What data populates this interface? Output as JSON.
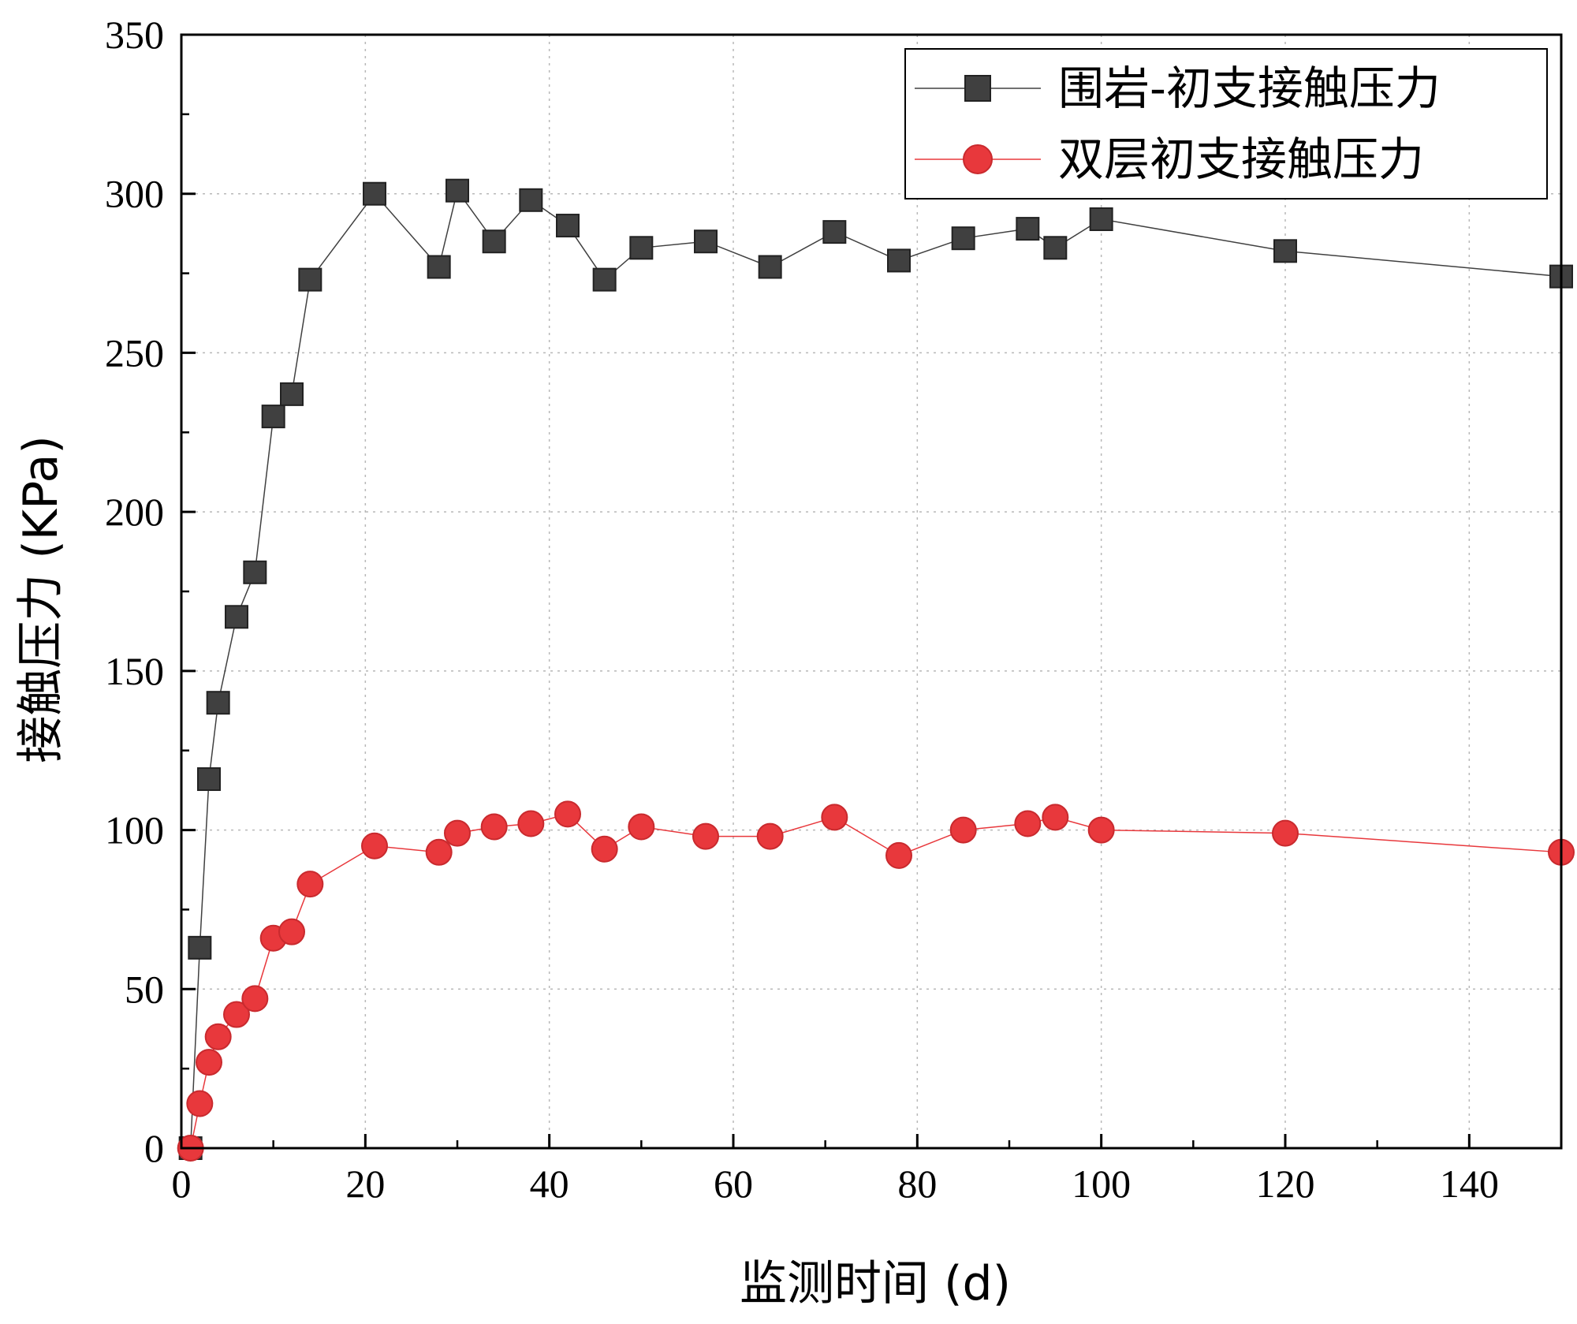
{
  "chart_data": {
    "type": "line",
    "xlabel": "监测时间 (d)",
    "ylabel": "接触压力 (KPa)",
    "xlim": [
      0,
      150
    ],
    "ylim": [
      0,
      350
    ],
    "xticks": [
      0,
      20,
      40,
      60,
      80,
      100,
      120,
      140
    ],
    "yticks": [
      0,
      50,
      100,
      150,
      200,
      250,
      300,
      350
    ],
    "grid": true,
    "legend_position": "top-right",
    "series": [
      {
        "name": "围岩-初支接触压力",
        "color": "#404040",
        "marker": "square",
        "x": [
          1,
          2,
          3,
          4,
          6,
          8,
          10,
          12,
          14,
          21,
          28,
          30,
          34,
          38,
          42,
          46,
          50,
          57,
          64,
          71,
          78,
          85,
          92,
          95,
          100,
          120,
          150
        ],
        "values": [
          0,
          63,
          116,
          140,
          167,
          181,
          230,
          237,
          273,
          300,
          277,
          301,
          285,
          298,
          290,
          273,
          283,
          285,
          277,
          288,
          279,
          286,
          289,
          283,
          292,
          282,
          274
        ]
      },
      {
        "name": "双层初支接触压力",
        "color": "#e8383c",
        "marker": "circle",
        "x": [
          1,
          2,
          3,
          4,
          6,
          8,
          10,
          12,
          14,
          21,
          28,
          30,
          34,
          38,
          42,
          46,
          50,
          57,
          64,
          71,
          78,
          85,
          92,
          95,
          100,
          120,
          150
        ],
        "values": [
          0,
          14,
          27,
          35,
          42,
          47,
          66,
          68,
          83,
          95,
          93,
          99,
          101,
          102,
          105,
          94,
          101,
          98,
          98,
          104,
          92,
          100,
          102,
          104,
          100,
          99,
          93
        ]
      }
    ]
  }
}
